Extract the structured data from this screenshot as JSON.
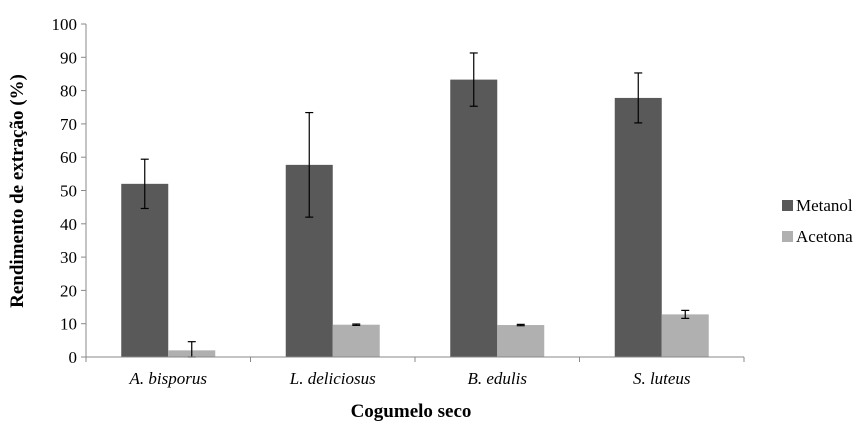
{
  "chart_data": {
    "type": "bar",
    "categories": [
      "A. bisporus",
      "L. deliciosus",
      "B. edulis",
      "S. luteus"
    ],
    "series": [
      {
        "name": "Metanol",
        "values": [
          52,
          57.7,
          83.3,
          77.8
        ],
        "errors": [
          7.4,
          15.7,
          8.0,
          7.5
        ],
        "color": "#595959"
      },
      {
        "name": "Acetona",
        "values": [
          2,
          9.7,
          9.6,
          12.8
        ],
        "errors": [
          2.6,
          0.2,
          0.2,
          1.2
        ],
        "color": "#b0b0b0"
      }
    ],
    "xlabel": "Cogumelo seco",
    "ylabel": "Rendimento de extração (%)",
    "ylim": [
      0,
      100
    ],
    "yticks": [
      0,
      10,
      20,
      30,
      40,
      50,
      60,
      70,
      80,
      90,
      100
    ],
    "legend_position": "right",
    "grid": false
  }
}
